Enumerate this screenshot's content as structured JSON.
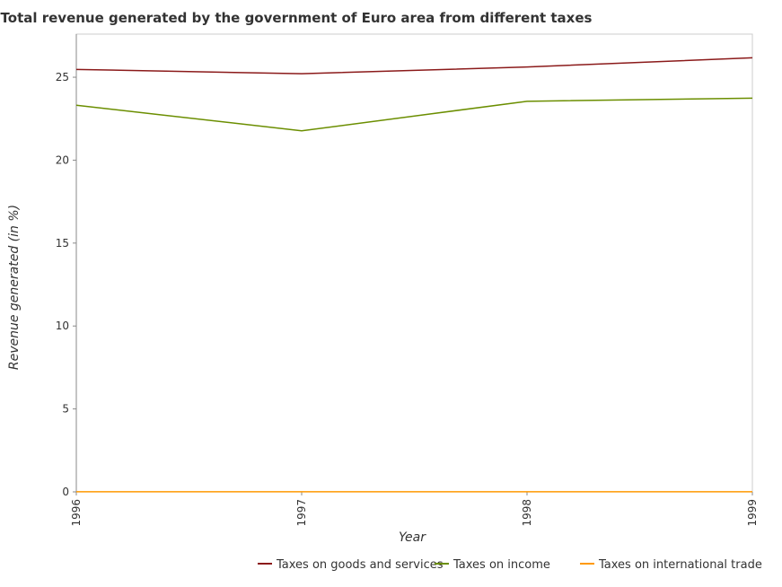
{
  "chart_data": {
    "type": "line",
    "title": "Total revenue generated by the government of Euro area from different taxes",
    "xlabel": "Year",
    "ylabel": "Revenue generated (in %)",
    "categories": [
      "1996",
      "1997",
      "1998",
      "1999"
    ],
    "ylim": [
      0,
      27.6
    ],
    "yticks": [
      0,
      5,
      10,
      15,
      20,
      25
    ],
    "grid": false,
    "legend_position": "bottom-right",
    "series": [
      {
        "name": "Taxes on goods and services",
        "color": "#8b1a1a",
        "values": [
          25.47,
          25.21,
          25.62,
          26.17
        ]
      },
      {
        "name": "Taxes on income",
        "color": "#6b8e00",
        "values": [
          23.31,
          21.77,
          23.55,
          23.74
        ]
      },
      {
        "name": "Taxes on international trade",
        "color": "#ff9900",
        "values": [
          0.01,
          0.01,
          0.01,
          0.01
        ]
      }
    ]
  }
}
